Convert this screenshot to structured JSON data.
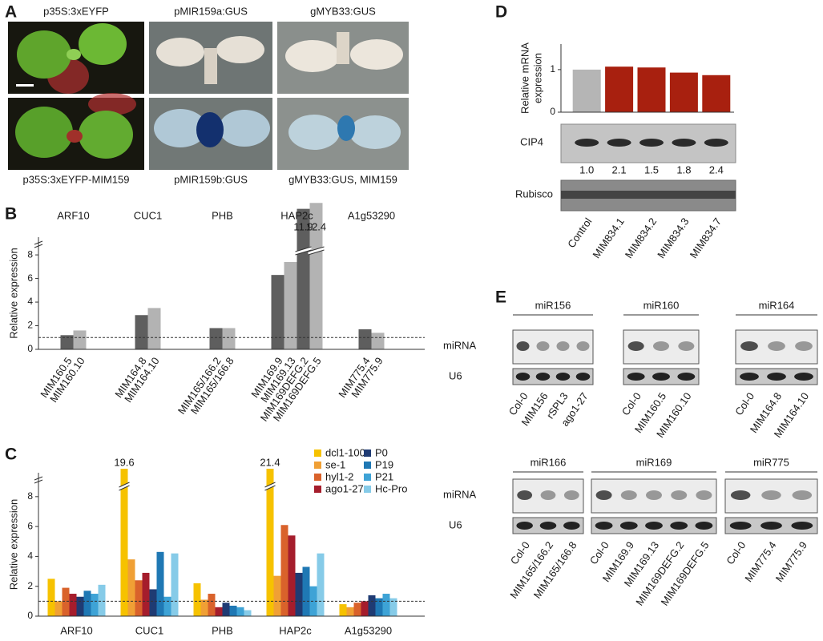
{
  "panel_labels": [
    "A",
    "B",
    "C",
    "D",
    "E"
  ],
  "panel_a": {
    "top_labels": [
      "p35S:3xEYFP",
      "pMIR159a:GUS",
      "gMYB33:GUS"
    ],
    "bottom_labels": [
      "p35S:3xEYFP-MIM159",
      "pMIR159b:GUS",
      "gMYB33:GUS, MIM159"
    ]
  },
  "chart_data": [
    {
      "type": "grouped-bar",
      "ylabel": "Relative expression",
      "ylim": [
        0,
        9.5
      ],
      "yticks": [
        0,
        2,
        4,
        6,
        8
      ],
      "reference_line": 1,
      "axis_break": true,
      "groups": [
        {
          "name": "ARF10",
          "bars": [
            {
              "label": "MIM160.5",
              "value": 1.2,
              "color": "#5e5e5e"
            },
            {
              "label": "MIM160.10",
              "value": 1.6,
              "color": "#b3b3b3"
            }
          ]
        },
        {
          "name": "CUC1",
          "bars": [
            {
              "label": "MIM164.8",
              "value": 2.9,
              "color": "#5e5e5e"
            },
            {
              "label": "MIM164.10",
              "value": 3.5,
              "color": "#b3b3b3"
            }
          ]
        },
        {
          "name": "PHB",
          "bars": [
            {
              "label": "MIM165/166.2",
              "value": 1.8,
              "color": "#5e5e5e"
            },
            {
              "label": "MIM165/166.8",
              "value": 1.8,
              "color": "#b3b3b3"
            }
          ]
        },
        {
          "name": "HAP2c",
          "bars": [
            {
              "label": "MIM169.9",
              "value": 6.3,
              "color": "#5e5e5e"
            },
            {
              "label": "MIM169.13",
              "value": 7.4,
              "color": "#b3b3b3"
            },
            {
              "label": "MIM169DEFG.2",
              "value": 11.9,
              "value_label": "11.9",
              "color": "#5e5e5e"
            },
            {
              "label": "MIM169DEFG.5",
              "value": 12.4,
              "value_label": "12.4",
              "color": "#b3b3b3"
            }
          ]
        },
        {
          "name": "A1g53290",
          "bars": [
            {
              "label": "MIM775.4",
              "value": 1.7,
              "color": "#5e5e5e"
            },
            {
              "label": "MIM775.9",
              "value": 1.4,
              "color": "#b3b3b3"
            }
          ]
        }
      ]
    },
    {
      "type": "grouped-bar",
      "ylabel": "Relative expression",
      "ylim": [
        0,
        9.6
      ],
      "yticks": [
        0,
        2,
        4,
        6,
        8
      ],
      "reference_line": 1,
      "axis_break": true,
      "categories": [
        "ARF10",
        "CUC1",
        "PHB",
        "HAP2c",
        "A1g53290"
      ],
      "series": [
        {
          "name": "dcl1-100",
          "color": "#f6c200",
          "values": [
            2.5,
            19.6,
            2.2,
            21.4,
            0.8
          ],
          "value_labels": [
            null,
            "19.6",
            null,
            "21.4",
            null
          ]
        },
        {
          "name": "se-1",
          "color": "#f0a035",
          "values": [
            1.0,
            3.8,
            1.1,
            2.7,
            0.6
          ]
        },
        {
          "name": "hyl1-2",
          "color": "#d9622b",
          "values": [
            1.9,
            2.4,
            1.5,
            6.1,
            0.9
          ]
        },
        {
          "name": "ago1-27",
          "color": "#a51d2c",
          "values": [
            1.5,
            2.9,
            0.6,
            5.4,
            1.0
          ]
        },
        {
          "name": "P0",
          "color": "#1f3b73",
          "values": [
            1.3,
            1.8,
            0.9,
            2.9,
            1.4
          ]
        },
        {
          "name": "P19",
          "color": "#1f78b4",
          "values": [
            1.7,
            4.3,
            0.7,
            3.3,
            1.2
          ]
        },
        {
          "name": "P21",
          "color": "#3ea3d6",
          "values": [
            1.5,
            1.3,
            0.6,
            2.0,
            1.5
          ]
        },
        {
          "name": "Hc-Pro",
          "color": "#86cbe8",
          "values": [
            2.1,
            4.2,
            0.4,
            4.2,
            1.2
          ]
        }
      ]
    },
    {
      "type": "bar",
      "ylabel": [
        "Relative mRNA",
        "expression"
      ],
      "ylim": [
        0,
        1.6
      ],
      "yticks": [
        0,
        1
      ],
      "categories": [
        "Control",
        "MIM834.1",
        "MIM834.2",
        "MIM834.3",
        "MIM834.7"
      ],
      "values": [
        1.0,
        1.07,
        1.05,
        0.93,
        0.87
      ],
      "colors": [
        "#b5b5b5",
        "#a8200f",
        "#a8200f",
        "#a8200f",
        "#a8200f"
      ]
    }
  ],
  "panel_d_blots": {
    "cip4_label": "CIP4",
    "cip4_levels": [
      "1.0",
      "2.1",
      "1.5",
      "1.8",
      "2.4"
    ],
    "rubisco_label": "Rubisco"
  },
  "panel_e": {
    "row_labels": [
      "miRNA",
      "U6"
    ],
    "blots": [
      {
        "title": "miR156",
        "lanes": [
          "Col-0",
          "MIM156",
          "rSPL3",
          "ago1-27"
        ]
      },
      {
        "title": "miR160",
        "lanes": [
          "Col-0",
          "MIM160.5",
          "MIM160.10"
        ]
      },
      {
        "title": "miR164",
        "lanes": [
          "Col-0",
          "MIM164.8",
          "MIM164.10"
        ]
      },
      {
        "title": "miR166",
        "lanes": [
          "Col-0",
          "MIM165/166.2",
          "MIM165/166.8"
        ]
      },
      {
        "title": "miR169",
        "lanes": [
          "Col-0",
          "MIM169.9",
          "MIM169.13",
          "MIM169DEFG.2",
          "MIM169DEFG.5"
        ]
      },
      {
        "title": "miR775",
        "lanes": [
          "Col-0",
          "MIM775.4",
          "MIM775.9"
        ]
      }
    ]
  }
}
